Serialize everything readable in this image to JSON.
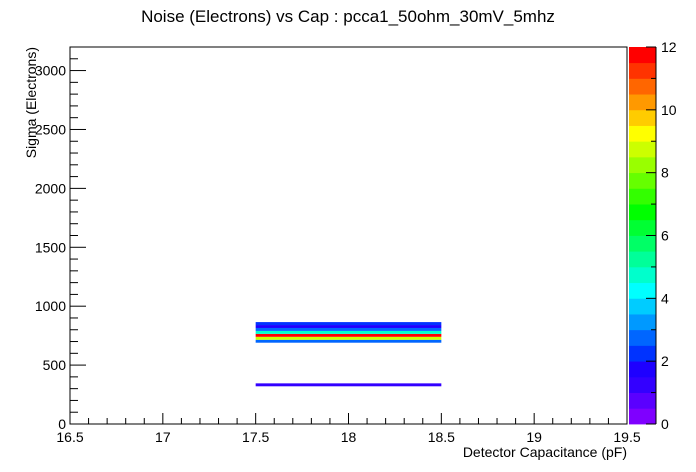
{
  "chart_data": {
    "type": "heatmap",
    "title": "Noise (Electrons) vs Cap : pcca1_50ohm_30mV_5mhz",
    "xlabel": "Detector Capacitance (pF)",
    "ylabel": "Sigma (Electrons)",
    "xlim": [
      16.5,
      19.5
    ],
    "ylim": [
      0,
      3200
    ],
    "x_ticks": [
      "16.5",
      "17",
      "17.5",
      "18",
      "18.5",
      "19",
      "19.5"
    ],
    "y_ticks": [
      "0",
      "500",
      "1000",
      "1500",
      "2000",
      "2500",
      "3000"
    ],
    "z_range": [
      0,
      12
    ],
    "z_ticks": [
      "0",
      "2",
      "4",
      "6",
      "8",
      "10",
      "12"
    ],
    "palette": [
      "#7f00ff",
      "#5a00ff",
      "#3300ff",
      "#1e00ff",
      "#0033ff",
      "#0066ff",
      "#0099ff",
      "#00ccff",
      "#00ffff",
      "#00ffcc",
      "#00ff99",
      "#00ff66",
      "#00ff33",
      "#00ff00",
      "#33ff00",
      "#66ff00",
      "#99ff00",
      "#ccff00",
      "#ffff00",
      "#ffcc00",
      "#ff9900",
      "#ff6600",
      "#ff3300",
      "#ff0000"
    ],
    "cells": [
      {
        "x0": 17.5,
        "x1": 18.5,
        "y0": 320,
        "y1": 345,
        "z": 1.0
      },
      {
        "x0": 17.5,
        "x1": 18.5,
        "y0": 690,
        "y1": 715,
        "z": 2.5
      },
      {
        "x0": 17.5,
        "x1": 18.5,
        "y0": 715,
        "y1": 740,
        "z": 8.5
      },
      {
        "x0": 17.5,
        "x1": 18.5,
        "y0": 740,
        "y1": 765,
        "z": 11.5
      },
      {
        "x0": 17.5,
        "x1": 18.5,
        "y0": 765,
        "y1": 790,
        "z": 4.5
      },
      {
        "x0": 17.5,
        "x1": 18.5,
        "y0": 790,
        "y1": 815,
        "z": 2.5
      },
      {
        "x0": 17.5,
        "x1": 18.5,
        "y0": 815,
        "y1": 840,
        "z": 1.5
      },
      {
        "x0": 17.5,
        "x1": 18.5,
        "y0": 840,
        "y1": 865,
        "z": 2.0
      }
    ],
    "grid": false,
    "legend": "right colorbar"
  }
}
